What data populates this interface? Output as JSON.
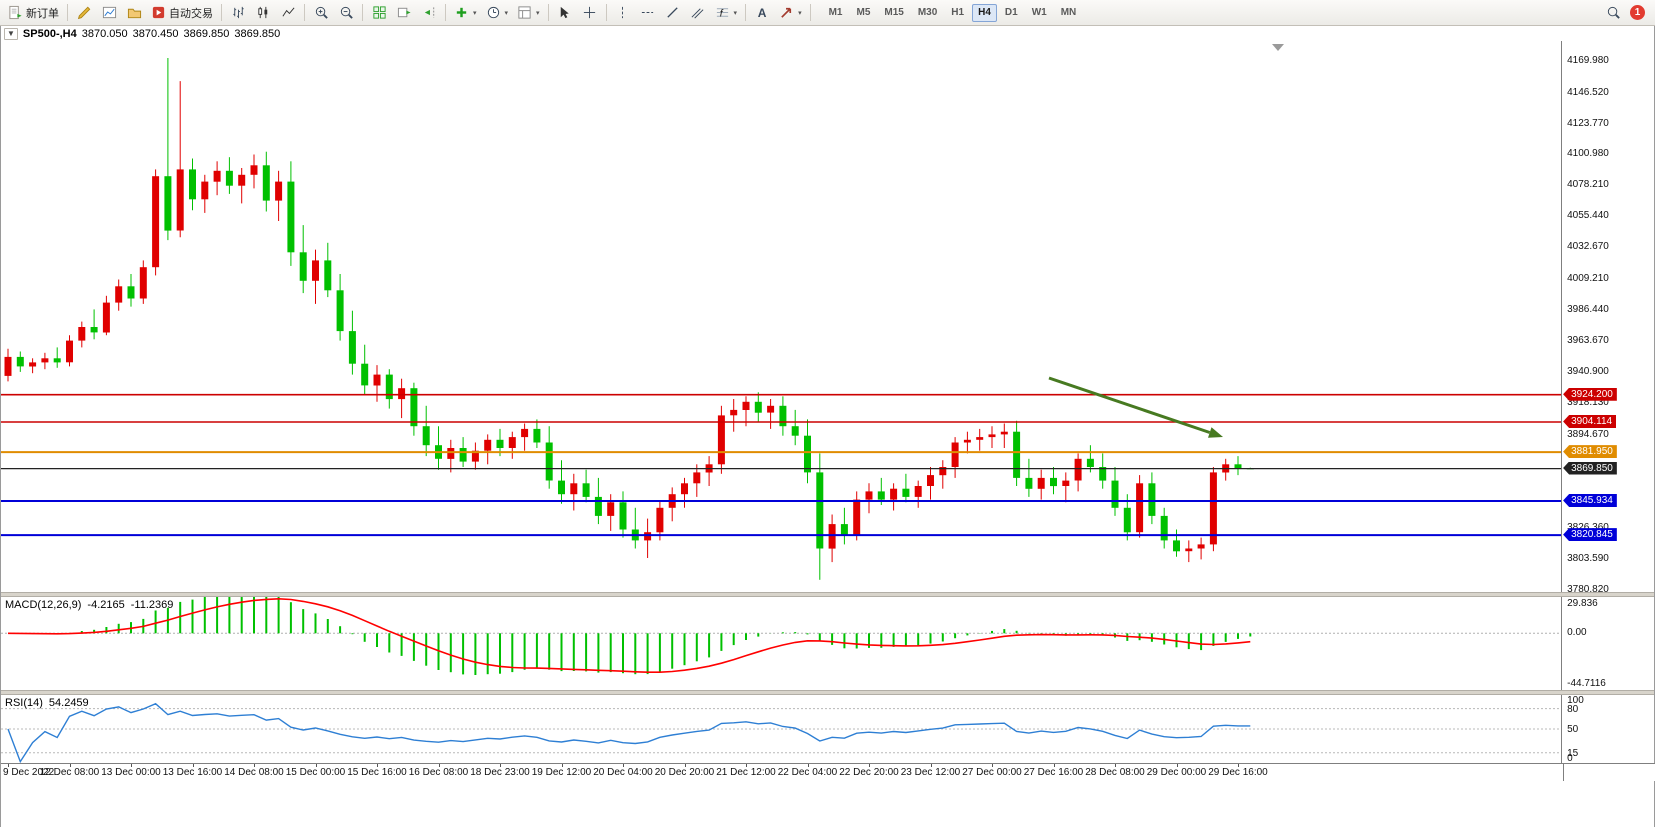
{
  "app": {
    "toolbar": {
      "new_order": "新订单",
      "autotrading": "自动交易",
      "timeframes": [
        "M1",
        "M5",
        "M15",
        "M30",
        "H1",
        "H4",
        "D1",
        "W1",
        "MN"
      ],
      "active_timeframe": "H4",
      "notification_count": "1"
    },
    "window_title": "SP500-,H4"
  },
  "chart_data": {
    "type": "candlestick",
    "symbol": "SP500-",
    "period": "H4",
    "ohlc_current": {
      "open": "3870.050",
      "high": "3870.450",
      "low": "3869.850",
      "close": "3869.850"
    },
    "bull_color": "#e00000",
    "bear_color": "#00c000",
    "price_axis": {
      "top": 4184.5,
      "bottom": 3779.0,
      "ticks": [
        {
          "v": 4169.98,
          "t": "4169.980"
        },
        {
          "v": 4146.52,
          "t": "4146.520"
        },
        {
          "v": 4123.77,
          "t": "4123.770"
        },
        {
          "v": 4100.98,
          "t": "4100.980"
        },
        {
          "v": 4078.21,
          "t": "4078.210"
        },
        {
          "v": 4055.44,
          "t": "4055.440"
        },
        {
          "v": 4032.67,
          "t": "4032.670"
        },
        {
          "v": 4009.21,
          "t": "4009.210"
        },
        {
          "v": 3986.44,
          "t": "3986.440"
        },
        {
          "v": 3963.67,
          "t": "3963.670"
        },
        {
          "v": 3940.9,
          "t": "3940.900"
        },
        {
          "v": 3918.13,
          "t": "3918.130"
        },
        {
          "v": 3894.67,
          "t": "3894.670"
        },
        {
          "v": 3826.36,
          "t": "3826.360"
        },
        {
          "v": 3803.59,
          "t": "3803.590"
        },
        {
          "v": 3780.82,
          "t": "3780.820"
        }
      ]
    },
    "levels": [
      {
        "price": 3924.2,
        "label": "3924.200",
        "color": "#cc0000",
        "width": 1.6
      },
      {
        "price": 3904.114,
        "label": "3904.114",
        "color": "#cc0000",
        "width": 1.6
      },
      {
        "price": 3881.95,
        "label": "3881.950",
        "color": "#e08c00",
        "width": 2
      },
      {
        "price": 3869.85,
        "label": "3869.850",
        "color": "#222222",
        "width": 1.2
      },
      {
        "price": 3845.934,
        "label": "3845.934",
        "color": "#0000d8",
        "width": 2
      },
      {
        "price": 3820.845,
        "label": "3820.845",
        "color": "#0000d8",
        "width": 2
      }
    ],
    "annotation_arrow": {
      "from": [
        1048,
        337
      ],
      "to": [
        1222,
        396
      ],
      "color": "#477a21"
    },
    "time_axis": {
      "label_every": 5,
      "labels": [
        "9 Dec 2022",
        "12 Dec 08:00",
        "13 Dec 00:00",
        "13 Dec 16:00",
        "14 Dec 08:00",
        "15 Dec 00:00",
        "15 Dec 16:00",
        "16 Dec 08:00",
        "18 Dec 23:00",
        "19 Dec 12:00",
        "20 Dec 04:00",
        "20 Dec 20:00",
        "21 Dec 12:00",
        "22 Dec 04:00",
        "22 Dec 20:00",
        "23 Dec 12:00",
        "27 Dec 00:00",
        "27 Dec 16:00",
        "28 Dec 08:00",
        "29 Dec 00:00",
        "29 Dec 16:00"
      ]
    },
    "candles": [
      [
        3938,
        3958,
        3934,
        3952
      ],
      [
        3952,
        3956,
        3941,
        3945
      ],
      [
        3945,
        3951,
        3940,
        3948
      ],
      [
        3948,
        3955,
        3943,
        3951
      ],
      [
        3951,
        3959,
        3944,
        3948
      ],
      [
        3948,
        3968,
        3945,
        3964
      ],
      [
        3964,
        3978,
        3959,
        3974
      ],
      [
        3974,
        3987,
        3965,
        3970
      ],
      [
        3970,
        3997,
        3968,
        3992
      ],
      [
        3992,
        4009,
        3986,
        4004
      ],
      [
        4004,
        4013,
        3989,
        3995
      ],
      [
        3995,
        4023,
        3991,
        4018
      ],
      [
        4018,
        4090,
        4012,
        4085
      ],
      [
        4085,
        4172,
        4038,
        4045
      ],
      [
        4045,
        4155,
        4040,
        4090
      ],
      [
        4090,
        4098,
        4060,
        4068
      ],
      [
        4068,
        4086,
        4058,
        4081
      ],
      [
        4081,
        4096,
        4071,
        4089
      ],
      [
        4089,
        4099,
        4072,
        4078
      ],
      [
        4078,
        4091,
        4065,
        4086
      ],
      [
        4086,
        4101,
        4076,
        4093
      ],
      [
        4093,
        4103,
        4059,
        4067
      ],
      [
        4067,
        4089,
        4052,
        4081
      ],
      [
        4081,
        4096,
        4019,
        4029
      ],
      [
        4029,
        4049,
        3999,
        4008
      ],
      [
        4008,
        4031,
        3991,
        4023
      ],
      [
        4023,
        4036,
        3996,
        4001
      ],
      [
        4001,
        4013,
        3964,
        3971
      ],
      [
        3971,
        3986,
        3939,
        3947
      ],
      [
        3947,
        3961,
        3924,
        3931
      ],
      [
        3931,
        3946,
        3919,
        3939
      ],
      [
        3939,
        3943,
        3914,
        3921
      ],
      [
        3921,
        3936,
        3907,
        3929
      ],
      [
        3929,
        3933,
        3894,
        3901
      ],
      [
        3901,
        3916,
        3879,
        3887
      ],
      [
        3887,
        3901,
        3869,
        3877
      ],
      [
        3877,
        3891,
        3867,
        3885
      ],
      [
        3885,
        3893,
        3871,
        3875
      ],
      [
        3875,
        3889,
        3869,
        3883
      ],
      [
        3883,
        3895,
        3873,
        3891
      ],
      [
        3891,
        3899,
        3879,
        3885
      ],
      [
        3885,
        3897,
        3877,
        3893
      ],
      [
        3893,
        3903,
        3883,
        3899
      ],
      [
        3899,
        3906,
        3885,
        3889
      ],
      [
        3889,
        3901,
        3855,
        3861
      ],
      [
        3861,
        3876,
        3844,
        3851
      ],
      [
        3851,
        3866,
        3839,
        3859
      ],
      [
        3859,
        3869,
        3845,
        3849
      ],
      [
        3849,
        3863,
        3829,
        3835
      ],
      [
        3835,
        3851,
        3824,
        3845
      ],
      [
        3845,
        3853,
        3819,
        3825
      ],
      [
        3825,
        3841,
        3811,
        3817
      ],
      [
        3817,
        3833,
        3804,
        3823
      ],
      [
        3823,
        3846,
        3817,
        3841
      ],
      [
        3841,
        3856,
        3831,
        3851
      ],
      [
        3851,
        3863,
        3841,
        3859
      ],
      [
        3859,
        3873,
        3849,
        3867
      ],
      [
        3867,
        3879,
        3857,
        3873
      ],
      [
        3873,
        3916,
        3866,
        3909
      ],
      [
        3909,
        3921,
        3897,
        3913
      ],
      [
        3913,
        3923,
        3901,
        3919
      ],
      [
        3919,
        3926,
        3904,
        3911
      ],
      [
        3911,
        3921,
        3899,
        3916
      ],
      [
        3916,
        3923,
        3894,
        3901
      ],
      [
        3901,
        3913,
        3887,
        3894
      ],
      [
        3894,
        3906,
        3859,
        3867
      ],
      [
        3867,
        3881,
        3788,
        3811
      ],
      [
        3811,
        3836,
        3801,
        3829
      ],
      [
        3829,
        3841,
        3814,
        3821
      ],
      [
        3821,
        3853,
        3817,
        3847
      ],
      [
        3847,
        3859,
        3837,
        3853
      ],
      [
        3853,
        3863,
        3843,
        3847
      ],
      [
        3847,
        3859,
        3839,
        3855
      ],
      [
        3855,
        3866,
        3845,
        3849
      ],
      [
        3849,
        3861,
        3841,
        3857
      ],
      [
        3857,
        3871,
        3847,
        3865
      ],
      [
        3865,
        3876,
        3855,
        3871
      ],
      [
        3871,
        3893,
        3863,
        3889
      ],
      [
        3889,
        3897,
        3881,
        3891
      ],
      [
        3891,
        3899,
        3883,
        3893
      ],
      [
        3893,
        3901,
        3885,
        3895
      ],
      [
        3895,
        3903,
        3885,
        3897
      ],
      [
        3897,
        3905,
        3857,
        3863
      ],
      [
        3863,
        3877,
        3849,
        3855
      ],
      [
        3855,
        3869,
        3847,
        3863
      ],
      [
        3863,
        3871,
        3851,
        3857
      ],
      [
        3857,
        3867,
        3845,
        3861
      ],
      [
        3861,
        3881,
        3853,
        3877
      ],
      [
        3877,
        3887,
        3867,
        3871
      ],
      [
        3871,
        3881,
        3855,
        3861
      ],
      [
        3861,
        3871,
        3835,
        3841
      ],
      [
        3841,
        3851,
        3817,
        3823
      ],
      [
        3823,
        3865,
        3819,
        3859
      ],
      [
        3859,
        3867,
        3829,
        3835
      ],
      [
        3835,
        3841,
        3811,
        3817
      ],
      [
        3817,
        3825,
        3805,
        3809
      ],
      [
        3809,
        3817,
        3801,
        3811
      ],
      [
        3811,
        3819,
        3803,
        3814
      ],
      [
        3814,
        3871,
        3809,
        3867
      ],
      [
        3867,
        3877,
        3861,
        3873
      ],
      [
        3873,
        3879,
        3865,
        3870
      ],
      [
        3870.05,
        3870.45,
        3869.85,
        3869.85
      ]
    ],
    "indicators": {
      "macd": {
        "name": "MACD(12,26,9)",
        "value_main": "-4.2165",
        "value_signal": "-11.2369",
        "axis_labels": [
          {
            "v": 29.836,
            "t": "29.836"
          },
          {
            "v": 0,
            "t": "0.00"
          },
          {
            "v": -44.7116,
            "t": "-44.7116"
          }
        ],
        "histogram_color": "#00c000",
        "signal_color": "#ff0000"
      },
      "rsi": {
        "name": "RSI(14)",
        "value": "54.2459",
        "axis_labels": [
          {
            "v": 100,
            "t": "100"
          },
          {
            "v": 80,
            "t": "80"
          },
          {
            "v": 50,
            "t": "50"
          },
          {
            "v": 15,
            "t": "15"
          },
          {
            "v": 0,
            "t": "0"
          }
        ],
        "dashed_levels": [
          80,
          50,
          15
        ],
        "line_color": "#2e7fd4"
      }
    }
  }
}
